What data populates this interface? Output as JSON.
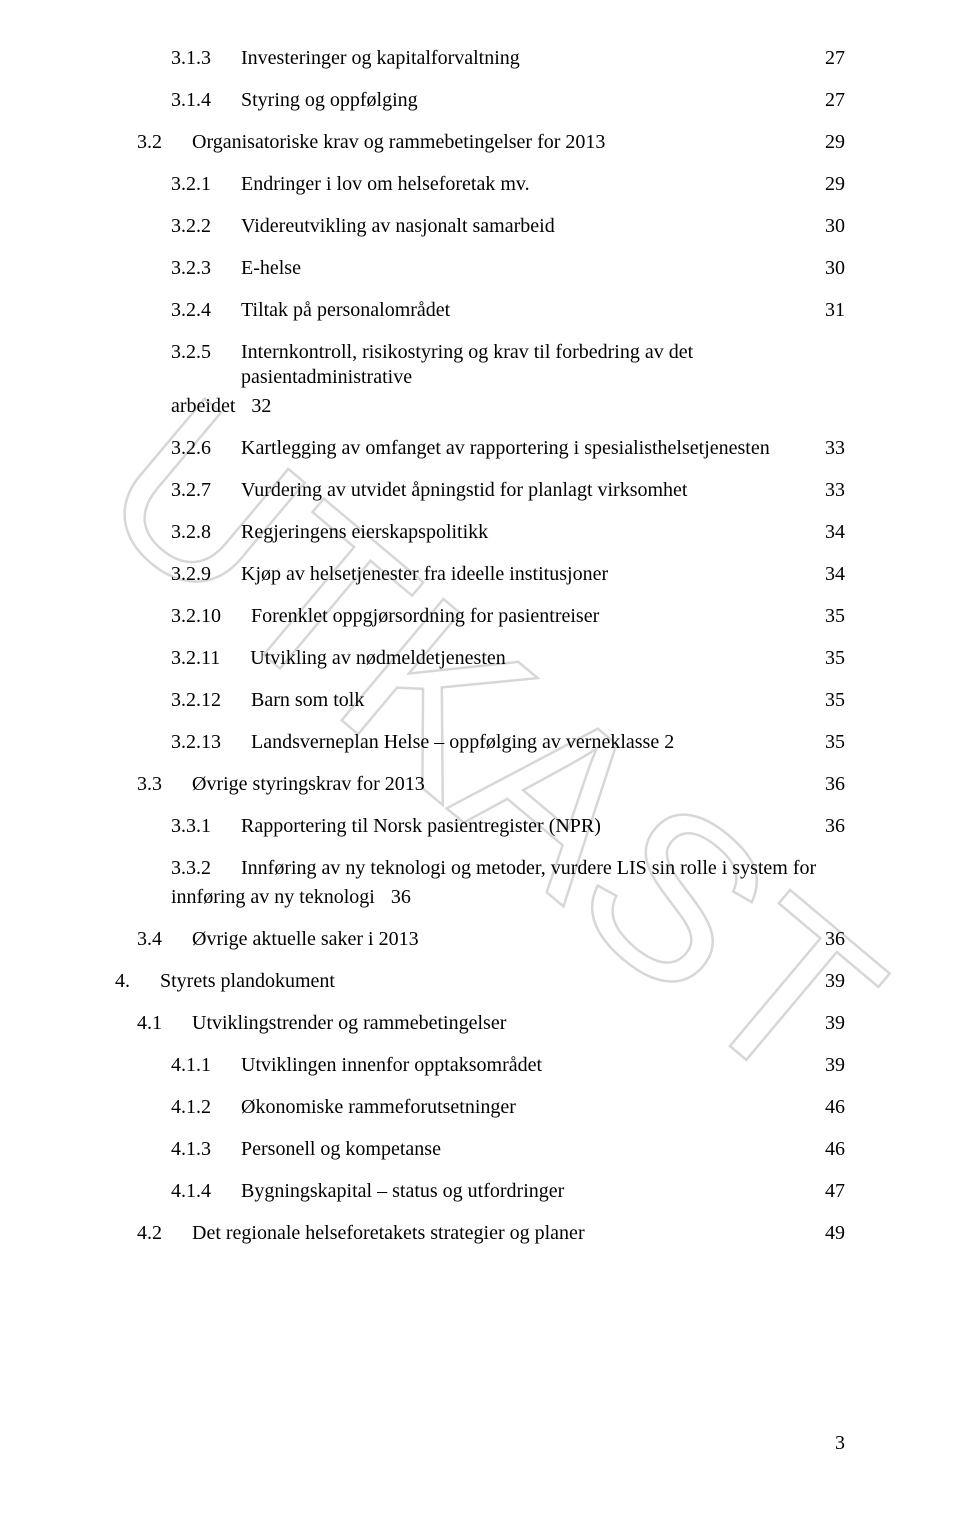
{
  "watermark": {
    "text": "UTKAST"
  },
  "page_number": "3",
  "toc": [
    {
      "level": 3,
      "num": "3.1.3",
      "title": "Investeringer og kapitalforvaltning",
      "page": "27"
    },
    {
      "level": 3,
      "num": "3.1.4",
      "title": "Styring og oppfølging",
      "page": "27"
    },
    {
      "level": 2,
      "num": "3.2",
      "title": "Organisatoriske krav og rammebetingelser for 2013",
      "page": "29"
    },
    {
      "level": 3,
      "num": "3.2.1",
      "title": "Endringer i lov om helseforetak mv.",
      "page": "29"
    },
    {
      "level": 3,
      "num": "3.2.2",
      "title": "Videreutvikling av nasjonalt samarbeid",
      "page": "30"
    },
    {
      "level": 3,
      "num": "3.2.3",
      "title": "E-helse",
      "page": "30"
    },
    {
      "level": 3,
      "num": "3.2.4",
      "title": "Tiltak på personalområdet",
      "page": "31"
    },
    {
      "level": 3,
      "num": "3.2.5",
      "title": "Internkontroll, risikostyring og krav til forbedring av det pasientadministrative arbeidet",
      "page": "32",
      "hang_page_after_prefix": true,
      "hang_prefix": "arbeidet"
    },
    {
      "level": 3,
      "num": "3.2.6",
      "title": "Kartlegging av omfanget av rapportering i spesialisthelsetjenesten",
      "page": "33"
    },
    {
      "level": 3,
      "num": "3.2.7",
      "title": "Vurdering av utvidet åpningstid for planlagt virksomhet",
      "page": "33"
    },
    {
      "level": 3,
      "num": "3.2.8",
      "title": "Regjeringens eierskapspolitikk",
      "page": "34"
    },
    {
      "level": 3,
      "num": "3.2.9",
      "title": "Kjøp av helsetjenester fra ideelle institusjoner",
      "page": "34"
    },
    {
      "level": 3,
      "num": "3.2.10",
      "title": "Forenklet oppgjørsordning for pasientreiser",
      "page": "35"
    },
    {
      "level": 3,
      "num": "3.2.11",
      "title": "Utvikling av nødmeldetjenesten",
      "page": "35"
    },
    {
      "level": 3,
      "num": "3.2.12",
      "title": "Barn som tolk",
      "page": "35"
    },
    {
      "level": 3,
      "num": "3.2.13",
      "title": "Landsverneplan Helse – oppfølging av verneklasse 2",
      "page": "35"
    },
    {
      "level": 2,
      "num": "3.3",
      "title": "Øvrige styringskrav for 2013",
      "page": "36"
    },
    {
      "level": 3,
      "num": "3.3.1",
      "title": "Rapportering til Norsk pasientregister (NPR)",
      "page": "36"
    },
    {
      "level": 3,
      "num": "3.3.2",
      "title": "Innføring av ny teknologi og metoder, vurdere LIS sin rolle i system for innføring av ny teknologi",
      "page": "36",
      "hang_page_after_prefix": true,
      "hang_prefix": "innføring av ny teknologi"
    },
    {
      "level": 2,
      "num": "3.4",
      "title": "Øvrige aktuelle saker i 2013",
      "page": "36"
    },
    {
      "level": 1,
      "num": "4.",
      "title": "Styrets plandokument",
      "page": "39"
    },
    {
      "level": 2,
      "num": "4.1",
      "title": "Utviklingstrender og rammebetingelser",
      "page": "39"
    },
    {
      "level": 3,
      "num": "4.1.1",
      "title": "Utviklingen innenfor opptaksområdet",
      "page": "39"
    },
    {
      "level": 3,
      "num": "4.1.2",
      "title": "Økonomiske rammeforutsetninger",
      "page": "46"
    },
    {
      "level": 3,
      "num": "4.1.3",
      "title": "Personell og kompetanse",
      "page": "46"
    },
    {
      "level": 3,
      "num": "4.1.4",
      "title": "Bygningskapital – status og utfordringer",
      "page": "47"
    },
    {
      "level": 2,
      "num": "4.2",
      "title": "Det regionale helseforetakets strategier og planer",
      "page": "49"
    }
  ]
}
